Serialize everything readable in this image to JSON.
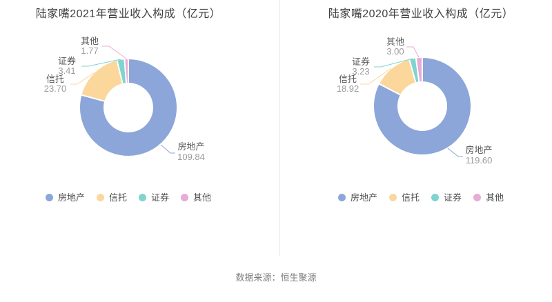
{
  "page": {
    "source_note": "数据来源：恒生聚源"
  },
  "chart_data": [
    {
      "type": "pie",
      "subtype": "donut",
      "title": "陆家嘴2021年营业收入构成（亿元）",
      "unit": "亿元",
      "categories": [
        "房地产",
        "信托",
        "证券",
        "其他"
      ],
      "values": [
        109.84,
        23.7,
        3.41,
        1.77
      ],
      "value_labels": [
        "109.84",
        "23.70",
        "3.41",
        "1.77"
      ],
      "colors": [
        "#8CA6D9",
        "#FBD79B",
        "#7FD4CE",
        "#E8ABD6"
      ],
      "legend": [
        "房地产",
        "信托",
        "证券",
        "其他"
      ],
      "legend_position": "bottom",
      "start_angle_deg": 0,
      "direction": "clockwise",
      "inner_radius_ratio": 0.49,
      "label_name_color": "#595959",
      "label_value_color": "#9b9b9b"
    },
    {
      "type": "pie",
      "subtype": "donut",
      "title": "陆家嘴2020年营业收入构成（亿元）",
      "unit": "亿元",
      "categories": [
        "房地产",
        "信托",
        "证券",
        "其他"
      ],
      "values": [
        119.6,
        18.92,
        3.23,
        3.0
      ],
      "value_labels": [
        "119.60",
        "18.92",
        "3.23",
        "3.00"
      ],
      "colors": [
        "#8CA6D9",
        "#FBD79B",
        "#7FD4CE",
        "#E8ABD6"
      ],
      "legend": [
        "房地产",
        "信托",
        "证券",
        "其他"
      ],
      "legend_position": "bottom",
      "start_angle_deg": 0,
      "direction": "clockwise",
      "inner_radius_ratio": 0.49,
      "label_name_color": "#595959",
      "label_value_color": "#9b9b9b"
    }
  ]
}
